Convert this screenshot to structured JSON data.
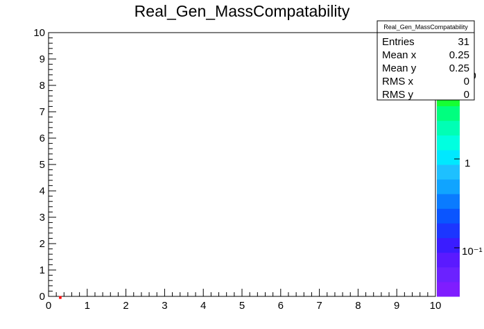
{
  "chart_data": {
    "type": "heatmap",
    "title": "Real_Gen_MassCompatability",
    "xlabel": "",
    "ylabel": "",
    "xlim": [
      0,
      10
    ],
    "ylim": [
      0,
      10
    ],
    "x_ticks": [
      "0",
      "1",
      "2",
      "3",
      "4",
      "5",
      "6",
      "7",
      "8",
      "9",
      "10"
    ],
    "y_ticks": [
      "0",
      "1",
      "2",
      "3",
      "4",
      "5",
      "6",
      "7",
      "8",
      "9",
      "10"
    ],
    "z_scale": "log",
    "z_ticks": [
      "10⁻¹",
      "1",
      "10"
    ],
    "z_range": [
      0.05,
      31
    ],
    "bin_width": 0.1,
    "cells": [
      {
        "x": 0.25,
        "y": 0.25,
        "value": 31
      }
    ],
    "palette": [
      "#7f1dff",
      "#6b22ff",
      "#5a1aff",
      "#3a1cff",
      "#1c36ff",
      "#0a55ff",
      "#0a7bff",
      "#10a4ff",
      "#1ec0ff",
      "#00e8ff",
      "#00ffe0",
      "#00ffb5",
      "#00ff7f",
      "#16ff32",
      "#49ff00",
      "#8cff00",
      "#c8ff00",
      "#eaff00"
    ],
    "grid": false
  },
  "stats": {
    "title": "Real_Gen_MassCompatability",
    "rows": [
      {
        "label": "Entries",
        "value": "31"
      },
      {
        "label": "Mean x",
        "value": "0.25"
      },
      {
        "label": "Mean y",
        "value": "0.25"
      },
      {
        "label": "RMS x",
        "value": "0"
      },
      {
        "label": "RMS y",
        "value": "0"
      }
    ]
  }
}
